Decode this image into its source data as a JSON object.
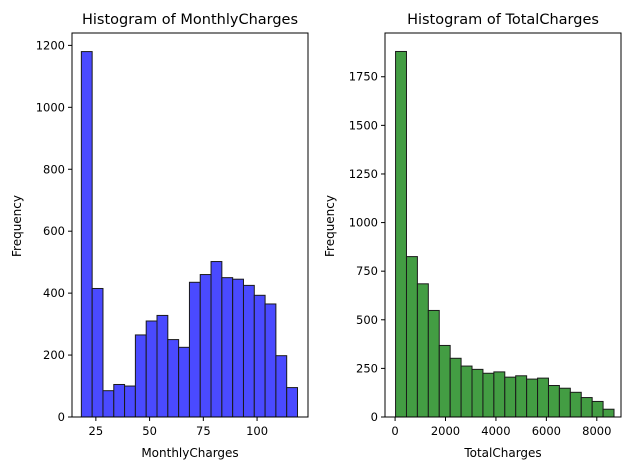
{
  "chart_data": [
    {
      "type": "bar",
      "title": "Histogram of MonthlyCharges",
      "xlabel": "MonthlyCharges",
      "ylabel": "Frequency",
      "color": "#4444ff",
      "xlim": [
        13.9,
        123.7
      ],
      "ylim": [
        0,
        1240
      ],
      "xticks": [
        25,
        50,
        75,
        100
      ],
      "yticks": [
        0,
        200,
        400,
        600,
        800,
        1000,
        1200
      ],
      "bins": [
        {
          "x0": 18.25,
          "x1": 23.28,
          "count": 1180
        },
        {
          "x0": 23.28,
          "x1": 28.31,
          "count": 415
        },
        {
          "x0": 28.31,
          "x1": 33.34,
          "count": 85
        },
        {
          "x0": 33.34,
          "x1": 38.36,
          "count": 105
        },
        {
          "x0": 38.36,
          "x1": 43.39,
          "count": 100
        },
        {
          "x0": 43.39,
          "x1": 48.42,
          "count": 265
        },
        {
          "x0": 48.42,
          "x1": 53.45,
          "count": 310
        },
        {
          "x0": 53.45,
          "x1": 58.48,
          "count": 328
        },
        {
          "x0": 58.48,
          "x1": 63.51,
          "count": 250
        },
        {
          "x0": 63.51,
          "x1": 68.54,
          "count": 225
        },
        {
          "x0": 68.54,
          "x1": 73.56,
          "count": 435
        },
        {
          "x0": 73.56,
          "x1": 78.59,
          "count": 460
        },
        {
          "x0": 78.59,
          "x1": 83.62,
          "count": 502
        },
        {
          "x0": 83.62,
          "x1": 88.65,
          "count": 450
        },
        {
          "x0": 88.65,
          "x1": 93.68,
          "count": 445
        },
        {
          "x0": 93.68,
          "x1": 98.71,
          "count": 425
        },
        {
          "x0": 98.71,
          "x1": 103.74,
          "count": 393
        },
        {
          "x0": 103.74,
          "x1": 108.76,
          "count": 365
        },
        {
          "x0": 108.76,
          "x1": 113.79,
          "count": 198
        },
        {
          "x0": 113.79,
          "x1": 118.82,
          "count": 95
        }
      ]
    },
    {
      "type": "bar",
      "title": "Histogram of TotalCharges",
      "xlabel": "TotalCharges",
      "ylabel": "Frequency",
      "color": "#3d9a3d",
      "xlim": [
        -400,
        8960
      ],
      "ylim": [
        0,
        1975
      ],
      "xticks": [
        0,
        2000,
        4000,
        6000,
        8000
      ],
      "yticks": [
        0,
        250,
        500,
        750,
        1000,
        1250,
        1500,
        1750
      ],
      "bins": [
        {
          "x0": 18.8,
          "x1": 452.0,
          "count": 1880
        },
        {
          "x0": 452.0,
          "x1": 885.2,
          "count": 825
        },
        {
          "x0": 885.2,
          "x1": 1318.4,
          "count": 685
        },
        {
          "x0": 1318.4,
          "x1": 1751.6,
          "count": 548
        },
        {
          "x0": 1751.6,
          "x1": 2184.8,
          "count": 368
        },
        {
          "x0": 2184.8,
          "x1": 2618.0,
          "count": 302
        },
        {
          "x0": 2618.0,
          "x1": 3051.2,
          "count": 262
        },
        {
          "x0": 3051.2,
          "x1": 3484.4,
          "count": 245
        },
        {
          "x0": 3484.4,
          "x1": 3917.6,
          "count": 225
        },
        {
          "x0": 3917.6,
          "x1": 4350.8,
          "count": 232
        },
        {
          "x0": 4350.8,
          "x1": 4784.0,
          "count": 205
        },
        {
          "x0": 4784.0,
          "x1": 5217.2,
          "count": 212
        },
        {
          "x0": 5217.2,
          "x1": 5650.4,
          "count": 195
        },
        {
          "x0": 5650.4,
          "x1": 6083.6,
          "count": 200
        },
        {
          "x0": 6083.6,
          "x1": 6516.8,
          "count": 162
        },
        {
          "x0": 6516.8,
          "x1": 6950.0,
          "count": 148
        },
        {
          "x0": 6950.0,
          "x1": 7383.2,
          "count": 127
        },
        {
          "x0": 7383.2,
          "x1": 7816.4,
          "count": 100
        },
        {
          "x0": 7816.4,
          "x1": 8249.6,
          "count": 80
        },
        {
          "x0": 8249.6,
          "x1": 8682.8,
          "count": 40
        }
      ]
    }
  ]
}
